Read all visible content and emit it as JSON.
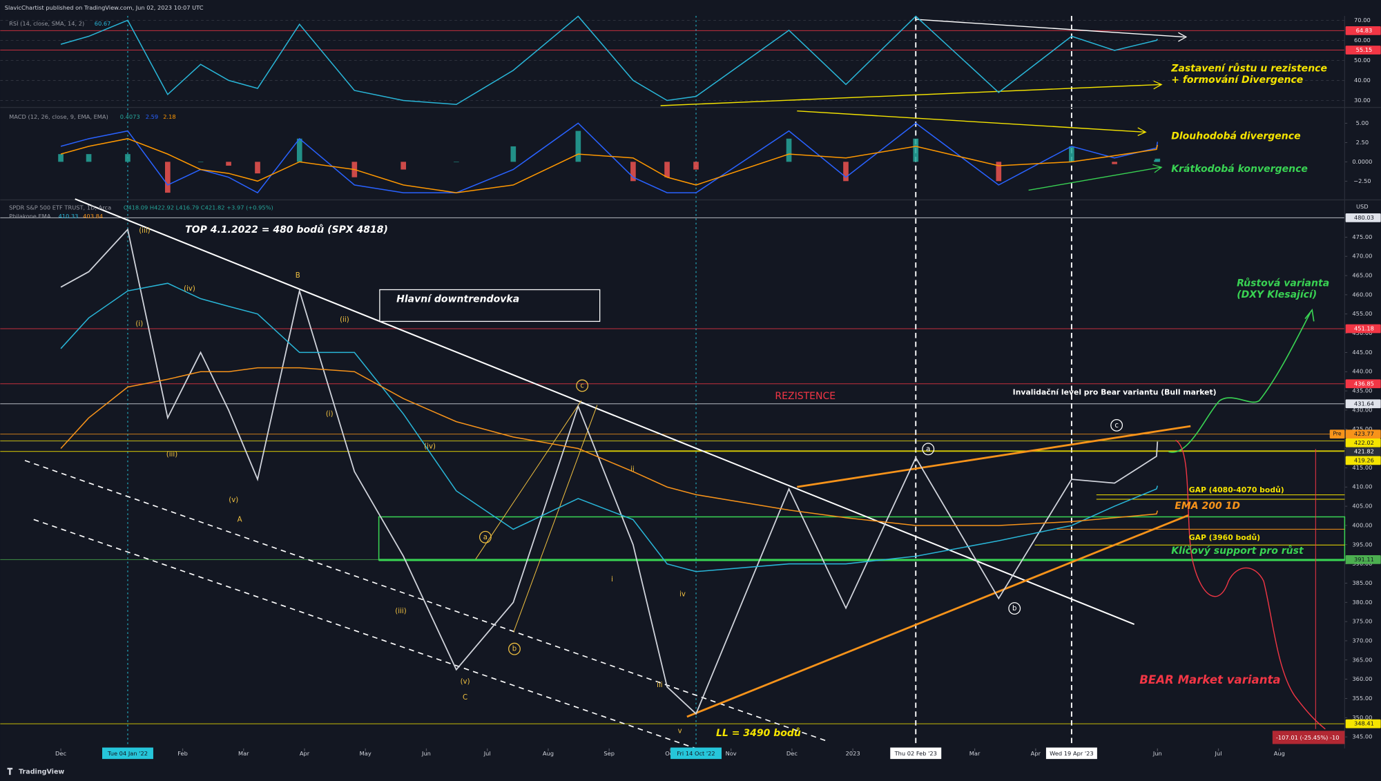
{
  "header": "SlavicChartist published on TradingView.com, Jun 02, 2023 10:07 UTC",
  "footer": "TradingView",
  "chart_data": [
    {
      "type": "line",
      "title": "RSI (14, close, SMA, 14, 2)",
      "x": [
        "2021-12-01",
        "2021-12-15",
        "2022-01-04",
        "2022-01-24",
        "2022-02-10",
        "2022-02-24",
        "2022-03-08",
        "2022-03-29",
        "2022-04-26",
        "2022-05-20",
        "2022-06-16",
        "2022-07-14",
        "2022-08-16",
        "2022-09-13",
        "2022-09-30",
        "2022-10-14",
        "2022-11-30",
        "2022-12-28",
        "2023-02-02",
        "2023-03-13",
        "2023-04-19",
        "2023-05-10",
        "2023-05-31",
        "2023-06-01"
      ],
      "series": [
        {
          "color": "#29b6d8",
          "values": [
            58,
            62,
            70,
            33,
            48,
            40,
            36,
            68,
            35,
            30,
            28,
            45,
            72,
            40,
            30,
            32,
            65,
            38,
            72,
            34,
            62,
            55,
            60,
            60.67
          ],
          "readout": 60.67
        }
      ],
      "ylim": [
        27.4,
        72.2
      ],
      "yticks": [
        {
          "value": 30,
          "label": "30.00"
        },
        {
          "value": 40,
          "label": "40.00"
        },
        {
          "value": 50,
          "label": "50.00"
        },
        {
          "value": 60,
          "label": "60.00"
        },
        {
          "value": 70,
          "label": "70.00"
        }
      ],
      "grid": true,
      "levels": [
        {
          "value": 64.83,
          "color": "#f23645",
          "text_color": "#ffffff"
        },
        {
          "value": 55.15,
          "color": "#f23645",
          "text_color": "#ffffff"
        }
      ],
      "annotations": [
        "Zastavení růstu u rezistence",
        "+ formování Divergence"
      ]
    },
    {
      "type": "macd",
      "title": "MACD (12, 26, close, 9, EMA, EMA)",
      "x": [
        "2021-12-01",
        "2021-12-15",
        "2022-01-04",
        "2022-01-24",
        "2022-02-10",
        "2022-02-24",
        "2022-03-08",
        "2022-03-29",
        "2022-04-26",
        "2022-05-20",
        "2022-06-16",
        "2022-07-14",
        "2022-08-16",
        "2022-09-13",
        "2022-09-30",
        "2022-10-14",
        "2022-11-30",
        "2022-12-28",
        "2023-02-02",
        "2023-03-13",
        "2023-04-19",
        "2023-05-10",
        "2023-05-31",
        "2023-06-01"
      ],
      "series": [
        {
          "kind": "histogram",
          "color": "#26a69a",
          "down_color": "#ef5350",
          "values": [
            1,
            1,
            1,
            -4,
            0,
            -0.5,
            -1.5,
            3,
            -2,
            -1,
            0,
            2,
            4,
            -2.5,
            -2,
            -1,
            3,
            -2.5,
            3,
            -2.5,
            2,
            -0.3,
            0.2,
            0.4073
          ],
          "readout": 0.4073
        },
        {
          "color": "#2962ff",
          "values": [
            2,
            3,
            4,
            -3,
            -1,
            -2,
            -4,
            3,
            -3,
            -4,
            -4,
            -1,
            5,
            -2,
            -4,
            -4,
            4,
            -2,
            5,
            -3,
            2,
            0.5,
            1.8,
            2.59
          ],
          "readout": 2.59
        },
        {
          "color": "#ff9800",
          "values": [
            1,
            2,
            3,
            1,
            -1,
            -1.5,
            -2.5,
            0,
            -1,
            -3,
            -4,
            -3,
            1,
            0.5,
            -2,
            -3,
            1,
            0.5,
            2,
            -0.5,
            0,
            0.8,
            1.6,
            2.18
          ],
          "readout": 2.18
        }
      ],
      "ylim": [
        -4.7,
        6.7
      ],
      "yticks": [
        {
          "value": 5,
          "label": "5.00"
        },
        {
          "value": 2.5,
          "label": "2.50"
        },
        {
          "value": 0,
          "label": "0.0000"
        },
        {
          "value": -2.5,
          "label": "−2.50"
        }
      ],
      "grid": false,
      "annotations": [
        "Dlouhodobá divergence",
        "Krátkodobá konvergence"
      ]
    },
    {
      "type": "line",
      "title": "SPDR S&P 500 ETF TRUST, 1D, Arca",
      "ohlc": "O418.09 H422.92 L416.79 C421.82 +3.97 (+0.95%)",
      "ema_title": "Philakone EMA",
      "currency": "USD",
      "x": [
        "2021-12-01",
        "2021-12-15",
        "2022-01-04",
        "2022-01-24",
        "2022-02-10",
        "2022-02-24",
        "2022-03-08",
        "2022-03-29",
        "2022-04-26",
        "2022-05-20",
        "2022-06-16",
        "2022-07-14",
        "2022-08-16",
        "2022-09-13",
        "2022-09-30",
        "2022-10-14",
        "2022-11-30",
        "2022-12-28",
        "2023-02-02",
        "2023-03-13",
        "2023-04-19",
        "2023-05-10",
        "2023-05-31",
        "2023-06-01"
      ],
      "series": [
        {
          "color": "#d1d4dc",
          "values": [
            462,
            466,
            477,
            428,
            445,
            430,
            412,
            461,
            414,
            392,
            362.5,
            380,
            431,
            395,
            358,
            351,
            409.5,
            378.5,
            417.6,
            381,
            412,
            411,
            418,
            421.82
          ]
        },
        {
          "color": "#29b6d8",
          "values": [
            446,
            454,
            461,
            463,
            459,
            457,
            455,
            445,
            445,
            429,
            409,
            399,
            407,
            401.5,
            390,
            388,
            390,
            390,
            392,
            396,
            400,
            405,
            409.5,
            410.33
          ],
          "readout": 410.33
        },
        {
          "color": "#f7931a",
          "values": [
            420,
            428,
            436,
            438,
            440,
            440,
            441,
            441,
            440,
            433,
            427,
            423,
            420,
            414,
            410,
            408,
            404,
            402,
            400,
            400,
            401,
            402,
            403,
            403.84
          ],
          "readout": 403.84
        }
      ],
      "ylim": [
        342,
        484
      ],
      "yticks": [
        {
          "value": 345,
          "label": "345.00"
        },
        {
          "value": 350,
          "label": "350.00"
        },
        {
          "value": 355,
          "label": "355.00"
        },
        {
          "value": 360,
          "label": "360.00"
        },
        {
          "value": 365,
          "label": "365.00"
        },
        {
          "value": 370,
          "label": "370.00"
        },
        {
          "value": 375,
          "label": "375.00"
        },
        {
          "value": 380,
          "label": "380.00"
        },
        {
          "value": 385,
          "label": "385.00"
        },
        {
          "value": 390,
          "label": "390.00"
        },
        {
          "value": 395,
          "label": "395.00"
        },
        {
          "value": 400,
          "label": "400.00"
        },
        {
          "value": 405,
          "label": "405.00"
        },
        {
          "value": 410,
          "label": "410.00"
        },
        {
          "value": 415,
          "label": "415.00"
        },
        {
          "value": 420,
          "label": "420.00"
        },
        {
          "value": 425,
          "label": "425.00"
        },
        {
          "value": 430,
          "label": "430.00"
        },
        {
          "value": 435,
          "label": "435.00"
        },
        {
          "value": 440,
          "label": "440.00"
        },
        {
          "value": 445,
          "label": "445.00"
        },
        {
          "value": 450,
          "label": "450.00"
        },
        {
          "value": 455,
          "label": "455.00"
        },
        {
          "value": 460,
          "label": "460.00"
        },
        {
          "value": 465,
          "label": "465.00"
        },
        {
          "value": 470,
          "label": "470.00"
        },
        {
          "value": 475,
          "label": "475.00"
        }
      ],
      "grid": false,
      "levels": [
        {
          "value": 480.03,
          "color": "#e0e3eb",
          "text_color": "#131722"
        },
        {
          "value": 451.18,
          "color": "#f23645",
          "text_color": "#ffffff"
        },
        {
          "value": 436.85,
          "color": "#f23645",
          "text_color": "#ffffff"
        },
        {
          "value": 431.64,
          "color": "#e0e3eb",
          "text_color": "#131722"
        },
        {
          "value": 423.77,
          "color": "#f7931a",
          "text_color": "#131722",
          "tag": "Pre"
        },
        {
          "value": 422.02,
          "color": "#f5e400",
          "text_color": "#131722"
        },
        {
          "value": 421.82,
          "color": "#2a2e39",
          "text_color": "#ffffff"
        },
        {
          "value": 419.26,
          "color": "#f5e400",
          "text_color": "#131722"
        },
        {
          "value": 391.11,
          "color": "#4caf50",
          "text_color": "#131722"
        },
        {
          "value": 348.41,
          "color": "#f5e400",
          "text_color": "#131722"
        }
      ],
      "xticks": [
        {
          "value": "2021-12-01",
          "label": "Dec"
        },
        {
          "value": "2022-02-01",
          "label": "Feb"
        },
        {
          "value": "2022-03-01",
          "label": "Mar"
        },
        {
          "value": "2022-04-01",
          "label": "Apr"
        },
        {
          "value": "2022-05-01",
          "label": "May"
        },
        {
          "value": "2022-06-01",
          "label": "Jun"
        },
        {
          "value": "2022-07-01",
          "label": "Jul"
        },
        {
          "value": "2022-08-01",
          "label": "Aug"
        },
        {
          "value": "2022-09-01",
          "label": "Sep"
        },
        {
          "value": "2022-10-01",
          "label": "Oct"
        },
        {
          "value": "2022-11-01",
          "label": "Nov"
        },
        {
          "value": "2022-12-01",
          "label": "Dec"
        },
        {
          "value": "2023-01-01",
          "label": "2023"
        },
        {
          "value": "2023-03-01",
          "label": "Mar"
        },
        {
          "value": "2023-04-01",
          "label": "Apr"
        },
        {
          "value": "2023-06-01",
          "label": "Jun"
        },
        {
          "value": "2023-07-01",
          "label": "Jul"
        },
        {
          "value": "2023-08-01",
          "label": "Aug"
        }
      ],
      "markers": [
        {
          "value": "2022-01-04",
          "label": "Tue 04 Jan '22",
          "color": "#26c6da",
          "style": "dotted"
        },
        {
          "value": "2022-10-14",
          "label": "Fri 14 Oct '22",
          "color": "#26c6da",
          "style": "dotted"
        },
        {
          "value": "2023-02-02",
          "label": "Thu 02 Feb '23",
          "color": "#ffffff",
          "style": "dashed"
        },
        {
          "value": "2023-04-19",
          "label": "Wed 19 Apr '23",
          "color": "#ffffff",
          "style": "dashed"
        }
      ],
      "annotations": [
        "TOP 4.1.2022 = 480 bodů (SPX 4818)",
        "Hlavní downtrendovka",
        "REZISTENCE",
        "Invalidační level pro Bear variantu (Bull market)",
        "Růstová varianta",
        "(DXY Klesající)",
        "GAP (4080-4070 bodů)",
        "EMA 200 1D",
        "GAP (3960 bodů)",
        "Klíčový support pro růst",
        "BEAR Market varianta",
        "LL = 3490 bodů",
        "-107.01 (-25.45%) -10"
      ],
      "wave_labels": [
        "(iii)",
        "(iv)",
        "B",
        "(ii)",
        "(i)",
        "(i)",
        "(iii)",
        "(v)",
        "A",
        "(iv)",
        "(iii)",
        "(v)",
        "C",
        "a",
        "b",
        "c",
        "ii",
        "i",
        "iv",
        "iii",
        "v",
        "a",
        "b",
        "c"
      ]
    }
  ]
}
